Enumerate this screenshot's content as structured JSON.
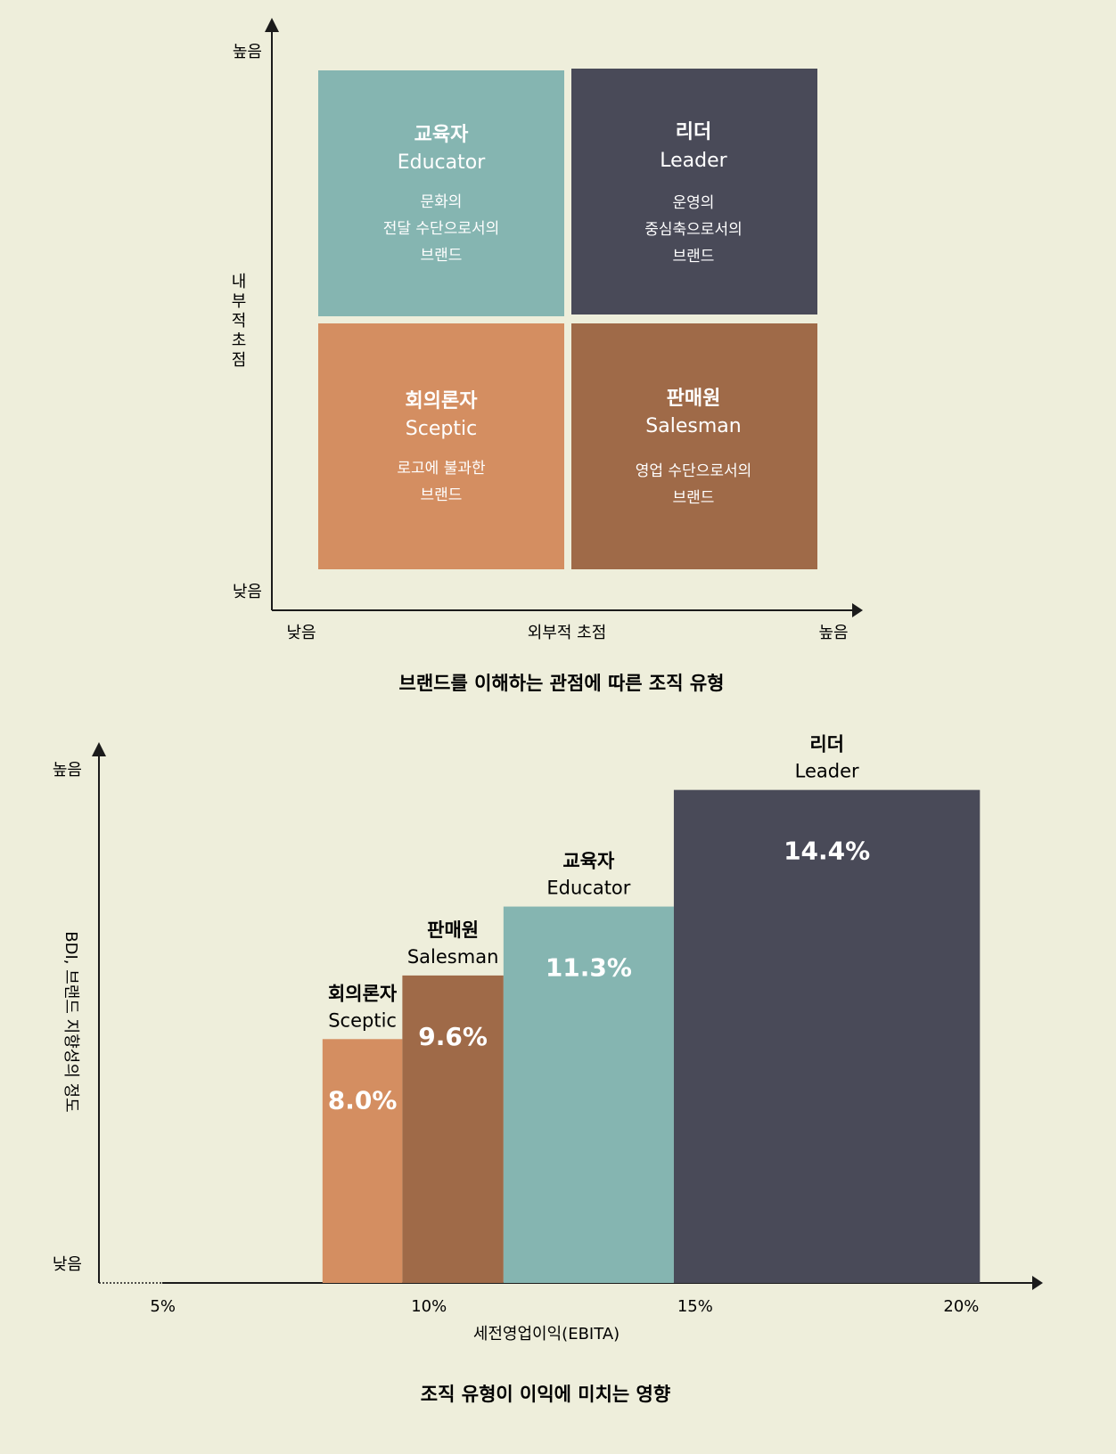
{
  "colors": {
    "background": "#eeeedb",
    "educator": "#85b5b1",
    "leader": "#494a58",
    "sceptic": "#d48e61",
    "salesman": "#9f6a48",
    "axis": "#1b1b1b"
  },
  "chart_data": [
    {
      "type": "table",
      "title": "브랜드를 이해하는 관점에 따른 조직 유형",
      "xlabel": "외부적 초점",
      "ylabel": "내부적 초점",
      "x_low_label": "낮음",
      "x_high_label": "높음",
      "y_low_label": "낮음",
      "y_high_label": "높음",
      "quadrants": [
        {
          "position": "top-left",
          "name_ko": "교육자",
          "name_en": "Educator",
          "desc": [
            "문화의",
            "전달 수단으로서의",
            "브랜드"
          ]
        },
        {
          "position": "top-right",
          "name_ko": "리더",
          "name_en": "Leader",
          "desc": [
            "운영의",
            "중심축으로서의",
            "브랜드"
          ]
        },
        {
          "position": "bottom-left",
          "name_ko": "회의론자",
          "name_en": "Sceptic",
          "desc": [
            "로고에 불과한",
            "브랜드"
          ]
        },
        {
          "position": "bottom-right",
          "name_ko": "판매원",
          "name_en": "Salesman",
          "desc": [
            "영업 수단으로서의",
            "브랜드"
          ]
        }
      ]
    },
    {
      "type": "bar",
      "title": "조직 유형이 이익에 미치는 영향",
      "xlabel": "세전영업이익(EBITA)",
      "ylabel": "BDI, 브랜드 지향성의 정도",
      "y_low_label": "낮음",
      "y_high_label": "높음",
      "x_ticks": [
        "5%",
        "10%",
        "15%",
        "20%"
      ],
      "x_tick_values": [
        5,
        10,
        15,
        20
      ],
      "xlim": [
        3.8,
        21.5
      ],
      "ylim": [
        0,
        100
      ],
      "series": [
        {
          "name_ko": "회의론자",
          "name_en": "Sceptic",
          "value": 8.0,
          "label": "8.0%",
          "x_start": 8.0,
          "x_end": 9.5,
          "bdi": 46
        },
        {
          "name_ko": "판매원",
          "name_en": "Salesman",
          "value": 9.6,
          "label": "9.6%",
          "x_start": 9.5,
          "x_end": 11.4,
          "bdi": 58
        },
        {
          "name_ko": "교육자",
          "name_en": "Educator",
          "value": 11.3,
          "label": "11.3%",
          "x_start": 11.4,
          "x_end": 14.6,
          "bdi": 71
        },
        {
          "name_ko": "리더",
          "name_en": "Leader",
          "value": 14.4,
          "label": "14.4%",
          "x_start": 14.6,
          "x_end": 20.35,
          "bdi": 93
        }
      ]
    }
  ]
}
